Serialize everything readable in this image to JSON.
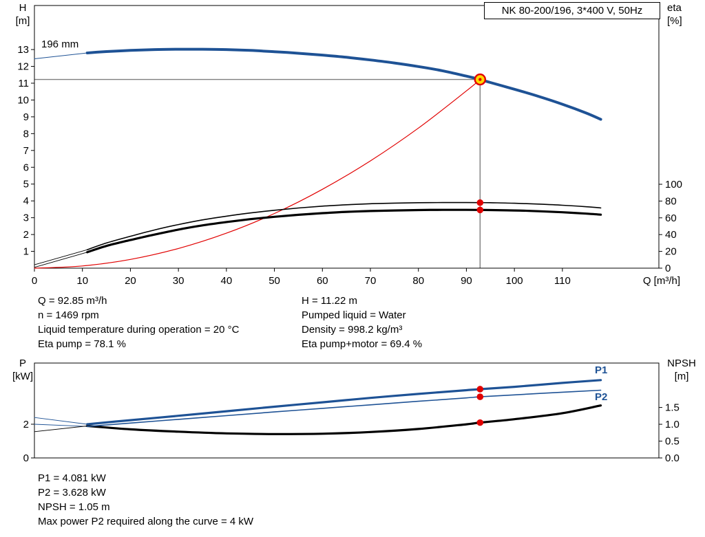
{
  "colors": {
    "blue": "#1e5295",
    "red": "#e10000",
    "black": "#000000",
    "gray": "#7d7d7d",
    "yellow": "#ffd800",
    "axis": "#000000"
  },
  "info_text": {
    "block1_left": [
      "Q = 92.85 m³/h",
      "n = 1469 rpm",
      "Liquid temperature during operation = 20 °C",
      "Eta pump = 78.1 %"
    ],
    "block1_right": [
      "H = 11.22 m",
      "Pumped liquid = Water",
      "Density = 998.2 kg/m³",
      "Eta pump+motor = 69.4 %"
    ],
    "block2": [
      "P1 = 4.081 kW",
      "P2 = 3.628 kW",
      "NPSH = 1.05 m",
      "Max power P2 required along the curve = 4 kW"
    ]
  },
  "chart_data": [
    {
      "name": "qh-eta-chart",
      "type": "line",
      "title": "NK 80-200/196, 3*400 V, 50Hz",
      "xlabel": "Q [m³/h]",
      "ylabel_left_lines": [
        "H",
        "[m]"
      ],
      "ylabel_right_lines": [
        "eta",
        "[%]"
      ],
      "annotations": {
        "curve_label": "196 mm"
      },
      "plot": {
        "l": 50,
        "r": 957,
        "t": 8,
        "b": 390
      },
      "xlim": [
        0,
        130.1
      ],
      "x_axis": {
        "ticks": [
          0,
          10,
          20,
          30,
          40,
          50,
          60,
          70,
          80,
          90,
          100,
          110
        ]
      },
      "axes": {
        "left": {
          "lim": [
            0,
            15.62
          ],
          "ticks": [
            1,
            2,
            3,
            4,
            5,
            6,
            7,
            8,
            9,
            10,
            11,
            12,
            13
          ]
        },
        "right": {
          "lim": [
            0,
            313.1
          ],
          "ticks": [
            0,
            20,
            40,
            60,
            80,
            100
          ]
        }
      },
      "crosshair": {
        "x": 92.85,
        "y": 11.22,
        "axis": "left"
      },
      "duty_point": {
        "Q": 92.85,
        "H": 11.22
      },
      "series": [
        {
          "name": "pump-curve-leader",
          "axis": "left",
          "color": "blue",
          "width": 0.9,
          "smooth": false,
          "x": [
            0,
            11
          ],
          "y": [
            12.45,
            12.8
          ]
        },
        {
          "name": "eta-pump-leader",
          "axis": "right",
          "color": "black",
          "width": 0.9,
          "smooth": false,
          "x": [
            0,
            11
          ],
          "y": [
            4,
            22
          ]
        },
        {
          "name": "eta-pump-motor-leader",
          "axis": "right",
          "color": "black",
          "width": 0.9,
          "smooth": false,
          "x": [
            0,
            11
          ],
          "y": [
            1,
            19
          ]
        },
        {
          "name": "system-curve",
          "axis": "left",
          "color": "red",
          "width": 1.2,
          "x": [
            0,
            10,
            20,
            30,
            40,
            50,
            60,
            70,
            80,
            90,
            92.85
          ],
          "y": [
            0,
            0.13,
            0.52,
            1.17,
            2.08,
            3.25,
            4.69,
            6.38,
            8.33,
            10.54,
            11.22
          ]
        },
        {
          "name": "eta-pump-curve",
          "axis": "right",
          "color": "black",
          "width": 1.6,
          "x": [
            11,
            15,
            20,
            25,
            30,
            35,
            40,
            45,
            50,
            55,
            60,
            65,
            70,
            75,
            80,
            85,
            90,
            92.85,
            95,
            100,
            105,
            110,
            115,
            118
          ],
          "y": [
            22,
            30,
            38,
            45.5,
            52,
            57.5,
            62,
            65.8,
            69,
            71.7,
            73.9,
            75.6,
            76.8,
            77.5,
            78,
            78.2,
            78.2,
            78.1,
            78,
            77.4,
            76.4,
            75,
            73.2,
            71.8
          ]
        },
        {
          "name": "eta-pump-motor-curve",
          "axis": "right",
          "color": "black",
          "width": 3.2,
          "x": [
            11,
            15,
            20,
            25,
            30,
            35,
            40,
            45,
            50,
            55,
            60,
            65,
            70,
            75,
            80,
            85,
            90,
            92.85,
            95,
            100,
            105,
            110,
            115,
            118
          ],
          "y": [
            19,
            26.5,
            33.5,
            40,
            46,
            51,
            55,
            58.4,
            61.2,
            63.6,
            65.6,
            67.1,
            68.1,
            68.8,
            69.3,
            69.5,
            69.5,
            69.4,
            69.3,
            68.8,
            67.9,
            66.6,
            65,
            63.8
          ]
        },
        {
          "name": "pump-curve-196mm",
          "axis": "left",
          "color": "blue",
          "width": 4,
          "x": [
            11,
            15,
            20,
            25,
            30,
            35,
            40,
            45,
            50,
            55,
            60,
            65,
            70,
            75,
            80,
            85,
            90,
            92.85,
            95,
            100,
            105,
            110,
            115,
            118
          ],
          "y": [
            12.8,
            12.88,
            12.95,
            13.0,
            13.02,
            13.02,
            13.0,
            12.95,
            12.87,
            12.78,
            12.67,
            12.54,
            12.38,
            12.2,
            11.99,
            11.74,
            11.42,
            11.22,
            11.04,
            10.64,
            10.22,
            9.75,
            9.22,
            8.85
          ]
        }
      ],
      "markers": [
        {
          "type": "dot",
          "x": 92.85,
          "y": 78.1,
          "axis": "right",
          "name": "eta-pump-duty-dot"
        },
        {
          "type": "dot",
          "x": 92.85,
          "y": 69.4,
          "axis": "right",
          "name": "eta-pump-motor-duty-dot"
        },
        {
          "type": "duty",
          "x": 92.85,
          "y": 11.22,
          "axis": "left",
          "name": "duty-point-marker"
        }
      ]
    },
    {
      "name": "power-npsh-chart",
      "type": "line",
      "xlabel": "",
      "ylabel_left_lines": [
        "P",
        "[kW]"
      ],
      "ylabel_right_lines": [
        "NPSH",
        "[m]"
      ],
      "annotations": {
        "p1_label": "P1",
        "p2_label": "P2"
      },
      "plot": {
        "l": 50,
        "r": 957,
        "t": 528,
        "b": 666
      },
      "xlim": [
        0,
        130.1
      ],
      "x_axis": {
        "ticks": []
      },
      "axes": {
        "left": {
          "lim": [
            0,
            5.63
          ],
          "ticks": [
            0,
            2
          ]
        },
        "right": {
          "lim": [
            0,
            2.82
          ],
          "ticks": [
            0,
            0.5,
            1,
            1.5
          ],
          "labels": [
            "0.0",
            "0.5",
            "1.0",
            "1.5"
          ]
        }
      },
      "series": [
        {
          "name": "p1-leader",
          "axis": "left",
          "color": "blue",
          "width": 0.9,
          "smooth": false,
          "x": [
            0,
            11
          ],
          "y": [
            2.4,
            2.0
          ]
        },
        {
          "name": "p2-leader",
          "axis": "left",
          "color": "blue",
          "width": 0.9,
          "smooth": false,
          "x": [
            0,
            11
          ],
          "y": [
            2.0,
            1.87
          ]
        },
        {
          "name": "npsh-leader",
          "axis": "right",
          "color": "black",
          "width": 0.9,
          "smooth": false,
          "x": [
            0,
            11
          ],
          "y": [
            0.78,
            0.95
          ]
        },
        {
          "name": "npsh-curve",
          "axis": "right",
          "color": "black",
          "width": 3.2,
          "x": [
            11,
            20,
            30,
            40,
            50,
            60,
            70,
            80,
            90,
            92.85,
            100,
            110,
            118
          ],
          "y": [
            0.95,
            0.85,
            0.78,
            0.73,
            0.71,
            0.72,
            0.77,
            0.86,
            1.0,
            1.05,
            1.15,
            1.33,
            1.56
          ]
        },
        {
          "name": "p2-curve",
          "axis": "left",
          "color": "blue",
          "width": 1.6,
          "x": [
            11,
            20,
            30,
            40,
            50,
            60,
            70,
            80,
            90,
            92.85,
            100,
            110,
            118
          ],
          "y": [
            1.87,
            2.07,
            2.29,
            2.51,
            2.73,
            2.94,
            3.15,
            3.36,
            3.56,
            3.628,
            3.74,
            3.9,
            4.02
          ]
        },
        {
          "name": "p1-curve",
          "axis": "left",
          "color": "blue",
          "width": 3.2,
          "x": [
            11,
            20,
            30,
            40,
            50,
            60,
            70,
            80,
            90,
            92.85,
            100,
            110,
            118
          ],
          "y": [
            2.0,
            2.24,
            2.5,
            2.77,
            3.04,
            3.3,
            3.56,
            3.8,
            4.02,
            4.081,
            4.22,
            4.45,
            4.62
          ]
        }
      ],
      "markers": [
        {
          "type": "dot",
          "x": 92.85,
          "y": 4.081,
          "axis": "left",
          "name": "p1-duty-dot"
        },
        {
          "type": "dot",
          "x": 92.85,
          "y": 3.628,
          "axis": "left",
          "name": "p2-duty-dot"
        },
        {
          "type": "dot",
          "x": 92.85,
          "y": 1.05,
          "axis": "right",
          "name": "npsh-duty-dot"
        }
      ]
    }
  ]
}
